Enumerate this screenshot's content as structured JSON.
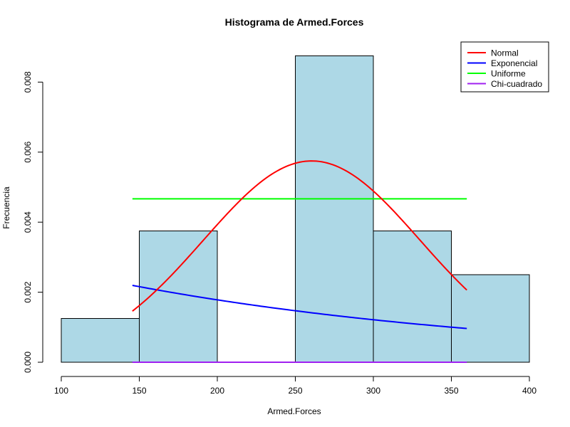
{
  "chart_data": {
    "type": "bar",
    "title": "Histograma de Armed.Forces",
    "xlabel": "Armed.Forces",
    "ylabel": "Frecuencia",
    "xlim": [
      100,
      400
    ],
    "ylim": [
      0,
      0.0088
    ],
    "x_ticks": [
      100,
      150,
      200,
      250,
      300,
      350,
      400
    ],
    "y_ticks": [
      0,
      0.002,
      0.004,
      0.006,
      0.008
    ],
    "y_tick_labels": [
      "0.000",
      "0.002",
      "0.004",
      "0.006",
      "0.008"
    ],
    "bins": [
      {
        "start": 100,
        "end": 150,
        "value": 0.00125
      },
      {
        "start": 150,
        "end": 200,
        "value": 0.00375
      },
      {
        "start": 200,
        "end": 250,
        "value": 0
      },
      {
        "start": 250,
        "end": 300,
        "value": 0.00875
      },
      {
        "start": 300,
        "end": 350,
        "value": 0.00375
      },
      {
        "start": 350,
        "end": 400,
        "value": 0.0025
      }
    ],
    "bar_fill": "#add8e6",
    "bar_stroke": "#000000",
    "grid": false,
    "legend_position": "top-right",
    "series": [
      {
        "name": "Normal",
        "color": "#ff0000",
        "kind": "normal",
        "mean": 260.5,
        "sd": 69.4,
        "x_range": [
          145.6,
          359.9
        ]
      },
      {
        "name": "Exponencial",
        "color": "#0000ff",
        "kind": "exponential",
        "rate": 0.00384,
        "x_range": [
          145.6,
          359.9
        ]
      },
      {
        "name": "Uniforme",
        "color": "#00ff00",
        "kind": "uniform",
        "density": 0.004667,
        "x_range": [
          145.6,
          359.9
        ]
      },
      {
        "name": "Chi-cuadrado",
        "color": "#a020f0",
        "kind": "chisq",
        "density": 0,
        "x_range": [
          145.6,
          359.9
        ]
      }
    ]
  }
}
